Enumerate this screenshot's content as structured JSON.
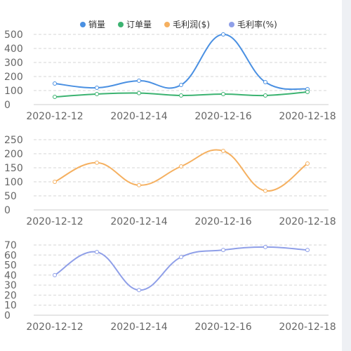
{
  "chart_data": [
    {
      "type": "line",
      "categories": [
        "2020-12-12",
        "2020-12-13",
        "2020-12-14",
        "2020-12-15",
        "2020-12-16",
        "2020-12-17",
        "2020-12-18"
      ],
      "x_tick_labels": [
        "2020-12-12",
        "2020-12-14",
        "2020-12-16",
        "2020-12-18"
      ],
      "ylim": [
        0,
        500
      ],
      "y_ticks": [
        0,
        100,
        200,
        300,
        400,
        500
      ],
      "grid": true,
      "series": [
        {
          "name": "销量",
          "color": "#4a90e2",
          "values": [
            150,
            120,
            170,
            140,
            500,
            160,
            110
          ]
        },
        {
          "name": "订单量",
          "color": "#3cb371",
          "values": [
            55,
            75,
            82,
            65,
            75,
            65,
            90
          ]
        }
      ]
    },
    {
      "type": "line",
      "categories": [
        "2020-12-12",
        "2020-12-13",
        "2020-12-14",
        "2020-12-15",
        "2020-12-16",
        "2020-12-17",
        "2020-12-18"
      ],
      "x_tick_labels": [
        "2020-12-12",
        "2020-12-14",
        "2020-12-16",
        "2020-12-18"
      ],
      "ylim": [
        0,
        250
      ],
      "y_ticks": [
        0,
        50,
        100,
        150,
        200,
        250
      ],
      "grid": true,
      "series": [
        {
          "name": "毛利润($)",
          "color": "#f5b060",
          "values": [
            100,
            168,
            88,
            155,
            210,
            68,
            165
          ]
        }
      ]
    },
    {
      "type": "line",
      "categories": [
        "2020-12-12",
        "2020-12-13",
        "2020-12-14",
        "2020-12-15",
        "2020-12-16",
        "2020-12-17",
        "2020-12-18"
      ],
      "x_tick_labels": [
        "2020-12-12",
        "2020-12-14",
        "2020-12-16",
        "2020-12-18"
      ],
      "ylim": [
        0,
        70
      ],
      "y_ticks": [
        0,
        10,
        20,
        30,
        40,
        50,
        60,
        70
      ],
      "grid": true,
      "series": [
        {
          "name": "毛利率(%)",
          "color": "#8f9fe8",
          "values": [
            40,
            63,
            25,
            58,
            65,
            68,
            65
          ]
        }
      ]
    }
  ],
  "legend": {
    "placement": "top-center",
    "items": [
      {
        "name": "销量",
        "color": "#4a90e2"
      },
      {
        "name": "订单量",
        "color": "#3cb371"
      },
      {
        "name": "毛利润($)",
        "color": "#f5b060"
      },
      {
        "name": "毛利率(%)",
        "color": "#8f9fe8"
      }
    ]
  }
}
